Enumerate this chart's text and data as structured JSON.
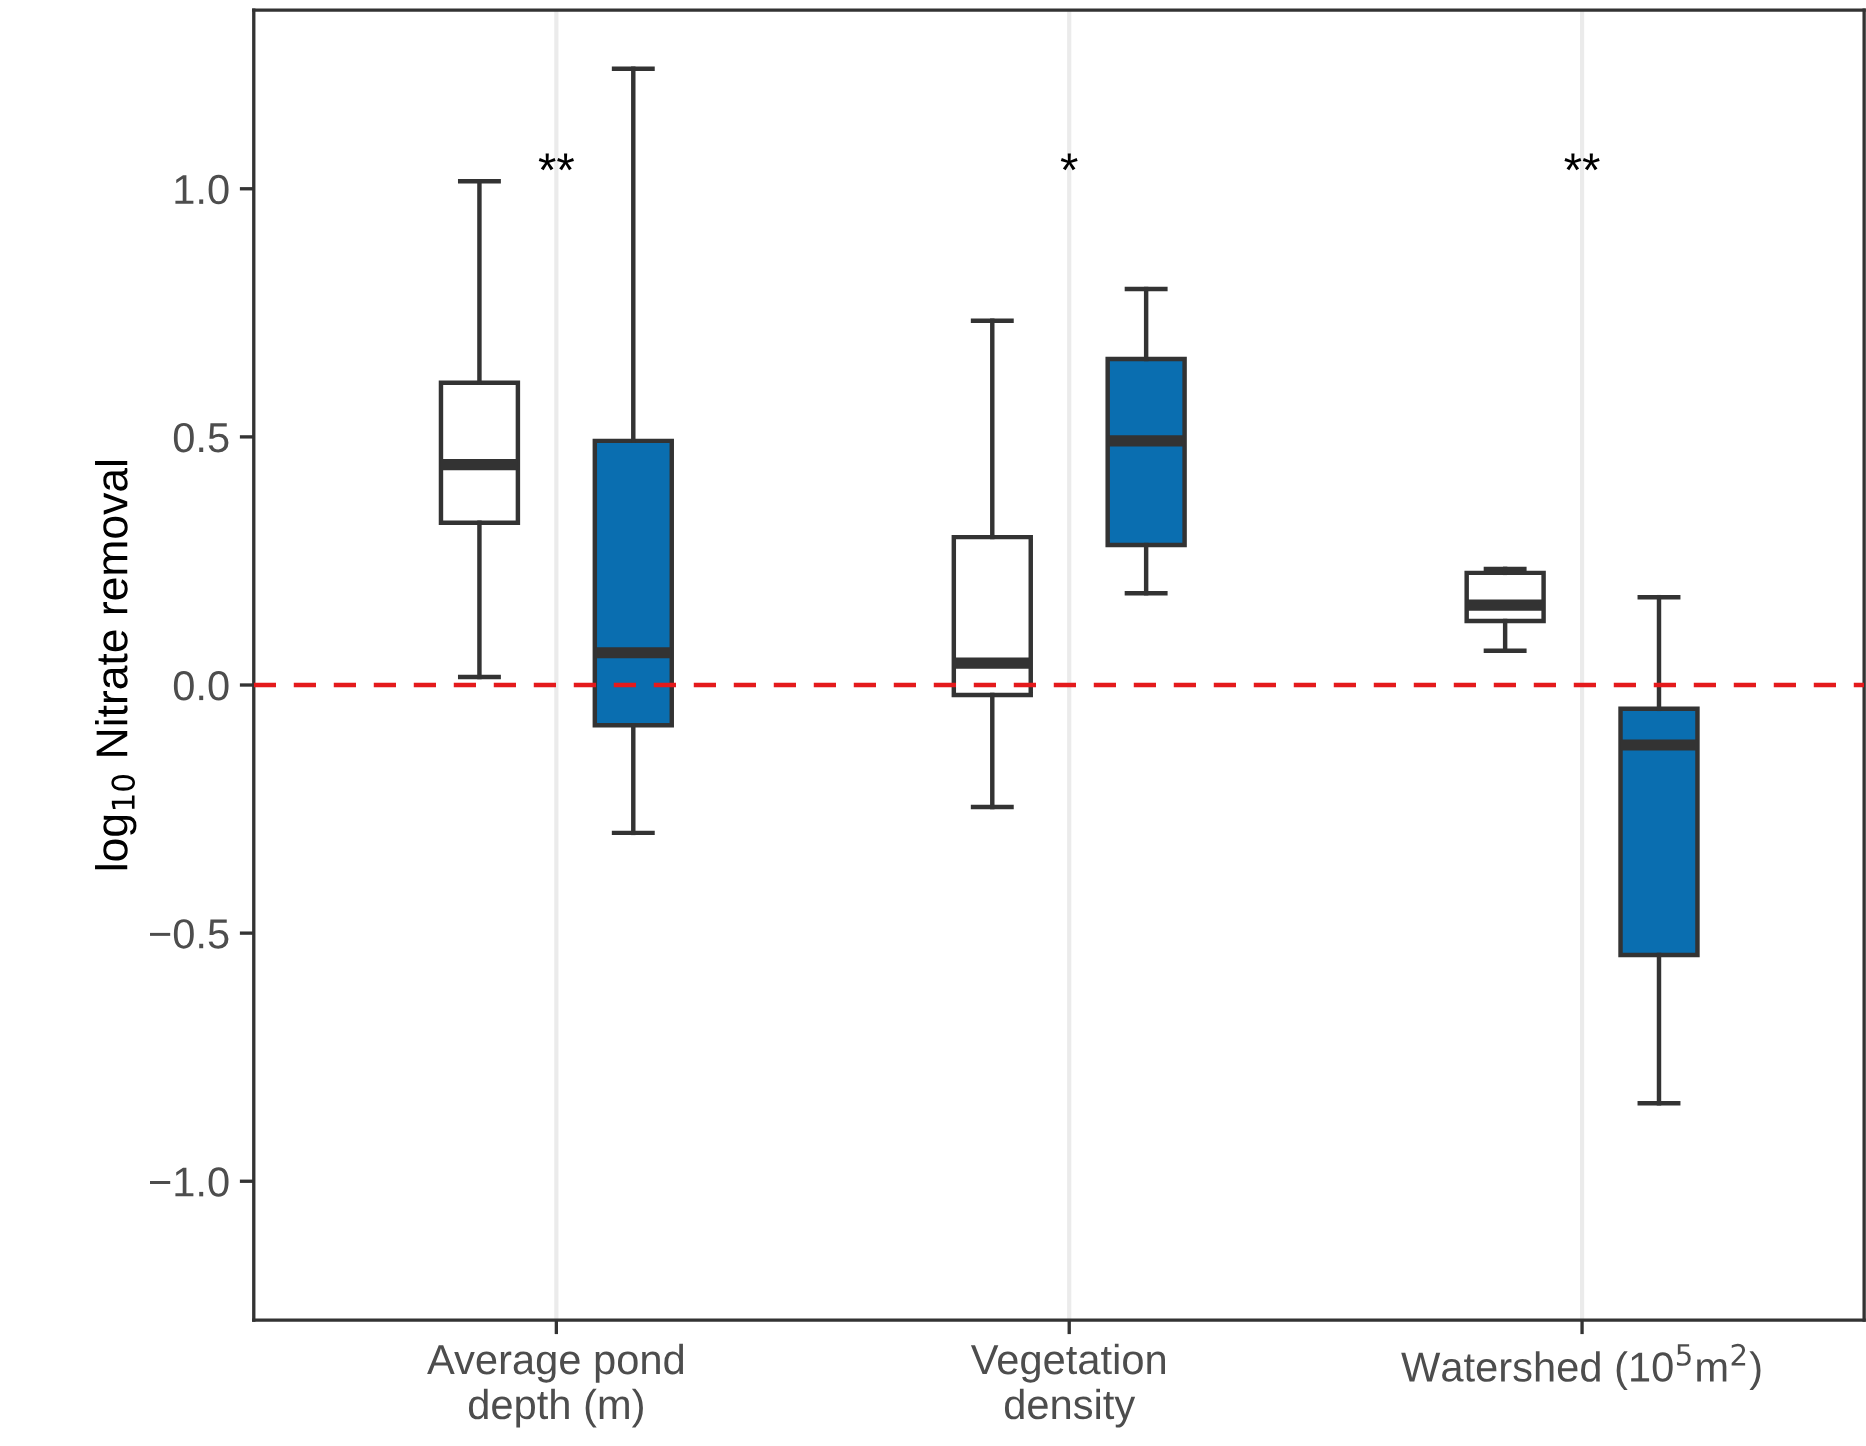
{
  "chart_data": {
    "type": "box",
    "ylabel": "log$_{10}$ Nitrate removal",
    "categories": [
      "Average pond\ndepth (m)",
      "Vegetation\ndensity",
      "Watershed (10$^{5}$m$^{2}$)"
    ],
    "series": [
      {
        "color": "#ffffff",
        "boxes": [
          {
            "low": 0.016,
            "q1": 0.327,
            "median": 0.444,
            "q3": 0.609,
            "high": 1.015
          },
          {
            "low": -0.246,
            "q1": -0.02,
            "median": 0.044,
            "q3": 0.298,
            "high": 0.734
          },
          {
            "low": 0.069,
            "q1": 0.129,
            "median": 0.161,
            "q3": 0.226,
            "high": 0.234
          }
        ]
      },
      {
        "color": "#0a6eb0",
        "boxes": [
          {
            "low": -0.298,
            "q1": -0.081,
            "median": 0.065,
            "q3": 0.492,
            "high": 1.242
          },
          {
            "low": 0.185,
            "q1": 0.282,
            "median": 0.492,
            "q3": 0.657,
            "high": 0.798
          },
          {
            "low": -0.843,
            "q1": -0.544,
            "median": -0.121,
            "q3": -0.048,
            "high": 0.177
          }
        ]
      }
    ],
    "ylim": [
      -1.28,
      1.36
    ],
    "yticks": [
      {
        "value": -1.0,
        "label": "−1.0"
      },
      {
        "value": -0.5,
        "label": "−0.5"
      },
      {
        "value": 0.0,
        "label": "0.0"
      },
      {
        "value": 0.5,
        "label": "0.5"
      },
      {
        "value": 1.0,
        "label": "1.0"
      }
    ],
    "ref_lines": [
      {
        "axis": "y",
        "value": 0,
        "color": "#e41a1c",
        "line_style": "dashed"
      }
    ],
    "annotations": [
      "**",
      "*",
      "**"
    ],
    "grid": "x",
    "legend": false
  }
}
